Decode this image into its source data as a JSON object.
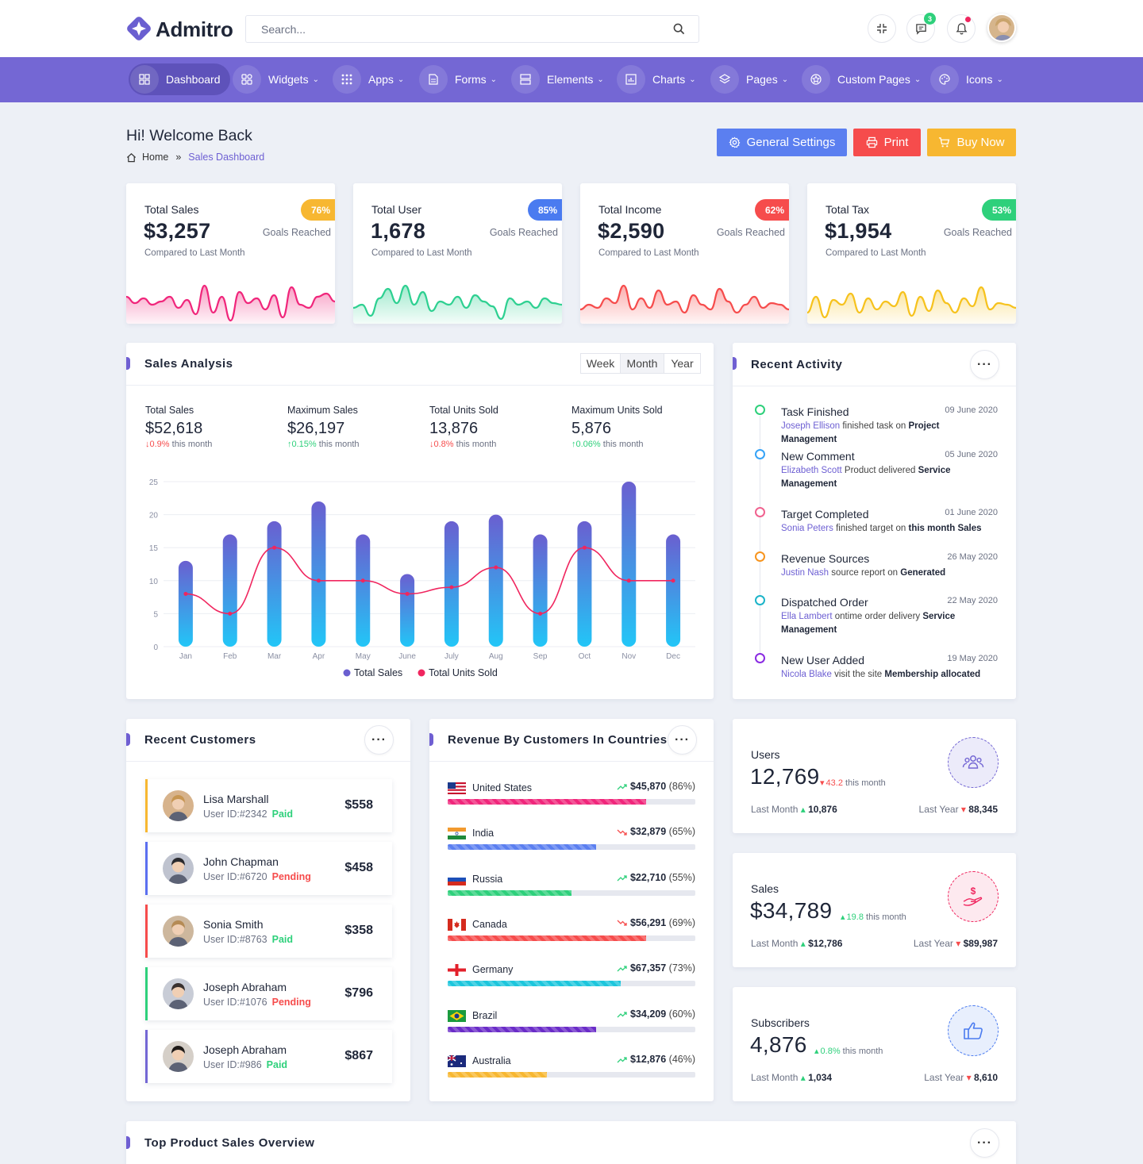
{
  "brand": {
    "name": "Admitro"
  },
  "search": {
    "placeholder": "Search..."
  },
  "header": {
    "chat_count": "3"
  },
  "nav": [
    {
      "label": "Dashboard",
      "icon": "dashboard-icon"
    },
    {
      "label": "Widgets",
      "icon": "widgets-icon"
    },
    {
      "label": "Apps",
      "icon": "apps-icon"
    },
    {
      "label": "Forms",
      "icon": "forms-icon"
    },
    {
      "label": "Elements",
      "icon": "elements-icon"
    },
    {
      "label": "Charts",
      "icon": "charts-icon"
    },
    {
      "label": "Pages",
      "icon": "pages-icon"
    },
    {
      "label": "Custom Pages",
      "icon": "custom-pages-icon"
    },
    {
      "label": "Icons",
      "icon": "icons-icon"
    }
  ],
  "page": {
    "title": "Hi! Welcome Back",
    "breadcrumb": [
      "Home",
      "Sales Dashboard"
    ],
    "breadcrumb_sep": "»"
  },
  "actions": {
    "settings": "General Settings",
    "print": "Print",
    "buy": "Buy Now"
  },
  "stats": [
    {
      "title": "Total Sales",
      "value": "$3,257",
      "badge": "76%",
      "goal": "Goals Reached",
      "sub": "Compared to Last Month",
      "color": "#f0267b",
      "badge_color": "#f7b731"
    },
    {
      "title": "Total User",
      "value": "1,678",
      "badge": "85%",
      "goal": "Goals Reached",
      "sub": "Compared to Last Month",
      "color": "#2ed091",
      "badge_color": "#4a7bf0"
    },
    {
      "title": "Total Income",
      "value": "$2,590",
      "badge": "62%",
      "goal": "Goals Reached",
      "sub": "Compared to Last Month",
      "color": "#f64c4c",
      "badge_color": "#f64c4c"
    },
    {
      "title": "Total Tax",
      "value": "$1,954",
      "badge": "53%",
      "goal": "Goals Reached",
      "sub": "Compared to Last Month",
      "color": "#f6c21d",
      "badge_color": "#2ed07b"
    }
  ],
  "sales_analysis": {
    "title": "Sales Analysis",
    "periods": [
      "Week",
      "Month",
      "Year"
    ],
    "active_period": "Month",
    "kpis": [
      {
        "label": "Total Sales",
        "value": "$52,618",
        "delta": "0.9%",
        "delta_text": "this month",
        "dir": "down"
      },
      {
        "label": "Maximum Sales",
        "value": "$26,197",
        "delta": "0.15%",
        "delta_text": "this month",
        "dir": "up"
      },
      {
        "label": "Total Units Sold",
        "value": "13,876",
        "delta": "0.8%",
        "delta_text": "this month",
        "dir": "down"
      },
      {
        "label": "Maximum Units Sold",
        "value": "5,876",
        "delta": "0.06%",
        "delta_text": "this month",
        "dir": "up"
      }
    ]
  },
  "chart_data": {
    "type": "bar",
    "categories": [
      "Jan",
      "Feb",
      "Mar",
      "Apr",
      "May",
      "June",
      "July",
      "Aug",
      "Sep",
      "Oct",
      "Nov",
      "Dec"
    ],
    "series": [
      {
        "name": "Total Sales",
        "type": "bar",
        "values": [
          13,
          17,
          19,
          22,
          17,
          11,
          19,
          20,
          17,
          19,
          25,
          17
        ],
        "color": "#6a5fd0"
      },
      {
        "name": "Total Units Sold",
        "type": "line",
        "values": [
          8,
          5,
          15,
          10,
          10,
          8,
          9,
          12,
          5,
          15,
          10,
          10
        ],
        "color": "#f0265f"
      }
    ],
    "ylim": [
      0,
      25
    ],
    "yticks": [
      0,
      5,
      10,
      15,
      20,
      25
    ],
    "grid": true,
    "legend": "bottom"
  },
  "activity": {
    "title": "Recent Activity",
    "items": [
      {
        "title": "Task Finished",
        "date": "09 June 2020",
        "user": "Joseph Ellison",
        "text": "finished task on",
        "bold": "Project Management",
        "color": "#2ed07b"
      },
      {
        "title": "New Comment",
        "date": "05 June 2020",
        "user": "Elizabeth Scott",
        "text": "Product delivered",
        "bold": "Service Management",
        "color": "#36a3f7"
      },
      {
        "title": "Target Completed",
        "date": "01 June 2020",
        "user": "Sonia Peters",
        "text": "finished target on",
        "bold": "this month Sales",
        "color": "#f0628f"
      },
      {
        "title": "Revenue Sources",
        "date": "26 May 2020",
        "user": "Justin Nash",
        "text": "source report on",
        "bold": "Generated",
        "color": "#f7941d"
      },
      {
        "title": "Dispatched Order",
        "date": "22 May 2020",
        "user": "Ella Lambert",
        "text": "ontime order delivery",
        "bold": "Service Management",
        "color": "#1cb4c9"
      },
      {
        "title": "New User Added",
        "date": "19 May 2020",
        "user": "Nicola Blake",
        "text": "visit the site",
        "bold": "Membership allocated",
        "color": "#8a2be2"
      }
    ]
  },
  "customers": {
    "title": "Recent Customers",
    "items": [
      {
        "name": "Lisa Marshall",
        "id": "User ID:#2342",
        "status": "Paid",
        "amount": "$558",
        "accent": "#f7b731",
        "status_color": "#2ed07b"
      },
      {
        "name": "John Chapman",
        "id": "User ID:#6720",
        "status": "Pending",
        "amount": "$458",
        "accent": "#5b6ff0",
        "status_color": "#f64c4c"
      },
      {
        "name": "Sonia Smith",
        "id": "User ID:#8763",
        "status": "Paid",
        "amount": "$358",
        "accent": "#f64c4c",
        "status_color": "#2ed07b"
      },
      {
        "name": "Joseph Abraham",
        "id": "User ID:#1076",
        "status": "Pending",
        "amount": "$796",
        "accent": "#2ed07b",
        "status_color": "#f64c4c"
      },
      {
        "name": "Joseph Abraham",
        "id": "User ID:#986",
        "status": "Paid",
        "amount": "$867",
        "accent": "#7467d4",
        "status_color": "#2ed07b"
      }
    ]
  },
  "countries": {
    "title": "Revenue By Customers In Countries",
    "items": [
      {
        "name": "United States",
        "value": "$45,870",
        "pct": "(86%)",
        "fill": 0.8,
        "color": "#f0267b",
        "trend": "up"
      },
      {
        "name": "India",
        "value": "$32,879",
        "pct": "(65%)",
        "fill": 0.6,
        "color": "#5b7ff0",
        "trend": "down"
      },
      {
        "name": "Russia",
        "value": "$22,710",
        "pct": "(55%)",
        "fill": 0.5,
        "color": "#2ed07b",
        "trend": "up"
      },
      {
        "name": "Canada",
        "value": "$56,291",
        "pct": "(69%)",
        "fill": 0.8,
        "color": "#f64c4c",
        "trend": "down"
      },
      {
        "name": "Germany",
        "value": "$67,357",
        "pct": "(73%)",
        "fill": 0.7,
        "color": "#1cc6dc",
        "trend": "up"
      },
      {
        "name": "Brazil",
        "value": "$34,209",
        "pct": "(60%)",
        "fill": 0.6,
        "color": "#6a2cc8",
        "trend": "up"
      },
      {
        "name": "Australia",
        "value": "$12,876",
        "pct": "(46%)",
        "fill": 0.4,
        "color": "#f7b731",
        "trend": "up"
      }
    ]
  },
  "metrics": [
    {
      "label": "Users",
      "value": "12,769",
      "delta": "43.2",
      "delta_text": "this month",
      "dir": "down",
      "last_month_label": "Last Month",
      "last_month": "10,876",
      "last_year_label": "Last Year",
      "last_year": "88,345",
      "color": "#7467d4",
      "bg": "#ecebfa",
      "icon": "users-icon"
    },
    {
      "label": "Sales",
      "value": "$34,789",
      "delta": "19.8",
      "delta_text": "this month",
      "dir": "up",
      "last_month_label": "Last Month",
      "last_month": "$12,786",
      "last_year_label": "Last Year",
      "last_year": "$89,987",
      "color": "#f0265f",
      "bg": "#fde9ef",
      "icon": "money-hand-icon"
    },
    {
      "label": "Subscribers",
      "value": "4,876",
      "delta": "0.8%",
      "delta_text": "this month",
      "dir": "up",
      "last_month_label": "Last Month",
      "last_month": "1,034",
      "last_year_label": "Last Year",
      "last_year": "8,610",
      "color": "#4a7bf0",
      "bg": "#e8effd",
      "icon": "thumbs-up-icon"
    }
  ],
  "top_products": {
    "title": "Top Product Sales Overview"
  }
}
